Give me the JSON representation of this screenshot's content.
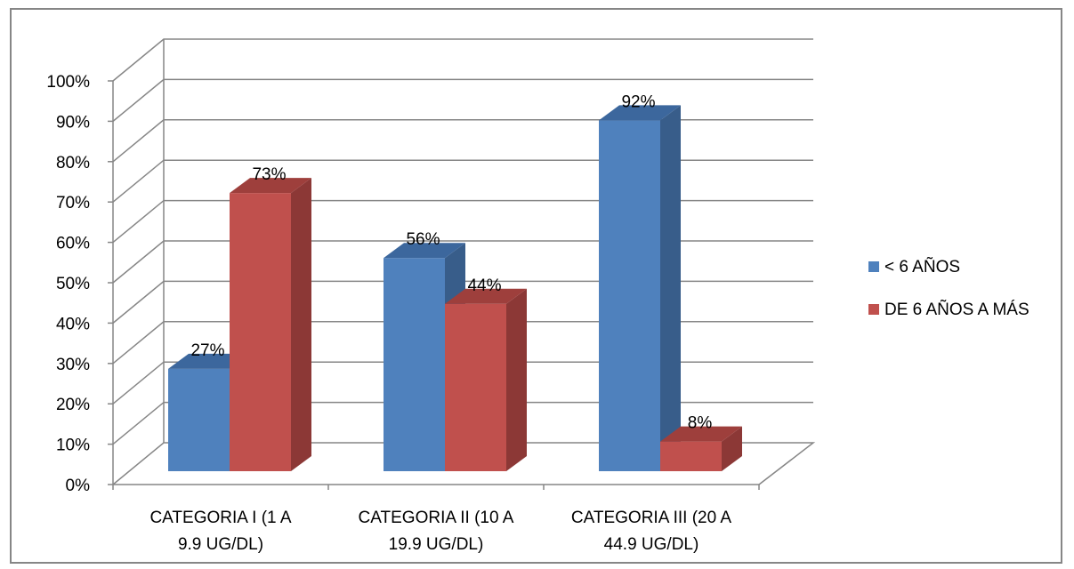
{
  "chart_data": {
    "type": "bar",
    "style": "3d-clustered-column",
    "categories": [
      [
        "CATEGORIA I  (1 A",
        "9.9 UG/DL)"
      ],
      [
        "CATEGORIA II (10 A",
        "19.9 UG/DL)"
      ],
      [
        "CATEGORIA III (20 A",
        "44.9 UG/DL)"
      ]
    ],
    "series": [
      {
        "name": "< 6 AÑOS",
        "values": [
          27,
          56,
          92
        ],
        "labels": [
          "27%",
          "56%",
          "92%"
        ],
        "color": "#4F81BD",
        "side_color": "#385D8A",
        "top_color": "#3C679D"
      },
      {
        "name": "DE 6 AÑOS A MÁS",
        "values": [
          73,
          44,
          8
        ],
        "labels": [
          "73%",
          "44%",
          "8%"
        ],
        "color": "#C0504D",
        "side_color": "#8C3836",
        "top_color": "#9E3F3C"
      }
    ],
    "ylim": [
      0,
      100
    ],
    "yticks": [
      "0%",
      "10%",
      "20%",
      "30%",
      "40%",
      "50%",
      "60%",
      "70%",
      "80%",
      "90%",
      "100%"
    ],
    "grid": true,
    "legend_position": "right"
  }
}
